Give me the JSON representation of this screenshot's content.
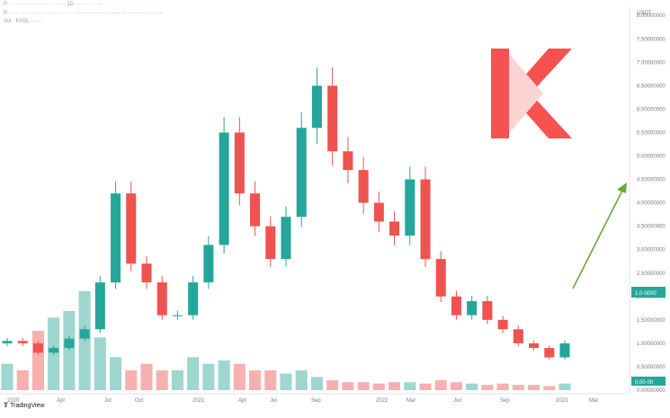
{
  "header": {
    "line1": "P··· ·············· ······· ·····, 1D ··· ····· ·· ···",
    "line2_prefix": "P··· ··· ····· ······· ·········· ·· ·",
    "line2_values": "· ·········· ········ ········ ········ · ·········",
    "line3_label": "Vol · KN3L",
    "line3_value": "······"
  },
  "price_axis": {
    "unit": "USDT",
    "ticks": [
      "8.00000000",
      "7.50000000",
      "7.00000000",
      "6.50000000",
      "6.00000000",
      "5.50000000",
      "5.00000000",
      "4.50000000",
      "4.00000000",
      "3.50000000",
      "3.00000000",
      "2.50000000",
      "2.00000000",
      "1.50000000",
      "1.00000000",
      "0.50000000",
      "0.00000000"
    ],
    "last_price_label": "1.0·0000",
    "last_volume_label": "0.00·00"
  },
  "time_axis": {
    "ticks": [
      "2020",
      "Apr",
      "Jul",
      "Oct",
      "2021",
      "Apr",
      "Jul",
      "Sep",
      "2022",
      "Mar",
      "Jun",
      "Sep",
      "2023",
      "Mar"
    ]
  },
  "colors": {
    "up": "#26a69a",
    "down": "#ef5350",
    "up_volume": "#9fd6cf",
    "down_volume": "#f6b1af",
    "arrow": "#6ca53a",
    "logo": "#f6524f"
  },
  "logo": {
    "icon": "kyber-k-logo"
  },
  "footer": {
    "brand": "TradingView",
    "icon": "tradingview-icon"
  },
  "annotation": {
    "type": "arrow",
    "direction": "up-right",
    "icon": "trend-arrow-icon"
  },
  "chart_data": {
    "type": "candlestick",
    "title": "",
    "xlabel": "",
    "ylabel": "",
    "ylim": [
      0,
      8.1
    ],
    "grid": false,
    "legend": "none",
    "x": [
      "2020-01",
      "2020-02",
      "2020-03",
      "2020-04",
      "2020-05",
      "2020-06",
      "2020-07",
      "2020-08",
      "2020-09",
      "2020-10",
      "2020-11",
      "2020-12",
      "2021-01",
      "2021-02",
      "2021-03",
      "2021-04",
      "2021-05",
      "2021-06",
      "2021-07",
      "2021-08",
      "2021-09",
      "2021-10",
      "2021-11",
      "2021-12",
      "2022-01",
      "2022-02",
      "2022-03",
      "2022-04",
      "2022-05",
      "2022-06",
      "2022-07",
      "2022-08",
      "2022-09",
      "2022-10",
      "2022-11",
      "2022-12",
      "2023-01"
    ],
    "series": [
      {
        "close": [
          1.05,
          1.0,
          0.8,
          0.9,
          1.1,
          1.3,
          2.3,
          4.2,
          2.7,
          2.3,
          1.6,
          1.6,
          2.3,
          3.1,
          5.5,
          4.2,
          3.5,
          2.8,
          3.7,
          5.6,
          6.5,
          5.1,
          4.7,
          4.0,
          3.6,
          3.3,
          4.5,
          2.8,
          2.0,
          1.6,
          1.9,
          1.5,
          1.3,
          1.0,
          0.9,
          0.7,
          1.0
        ]
      },
      {
        "volume": [
          0.4,
          0.3,
          0.9,
          1.1,
          1.2,
          1.5,
          0.8,
          0.5,
          0.3,
          0.4,
          0.3,
          0.3,
          0.5,
          0.4,
          0.45,
          0.4,
          0.3,
          0.3,
          0.25,
          0.3,
          0.2,
          0.15,
          0.12,
          0.12,
          0.1,
          0.12,
          0.12,
          0.1,
          0.15,
          0.12,
          0.1,
          0.08,
          0.1,
          0.08,
          0.08,
          0.06,
          0.1
        ]
      }
    ]
  }
}
